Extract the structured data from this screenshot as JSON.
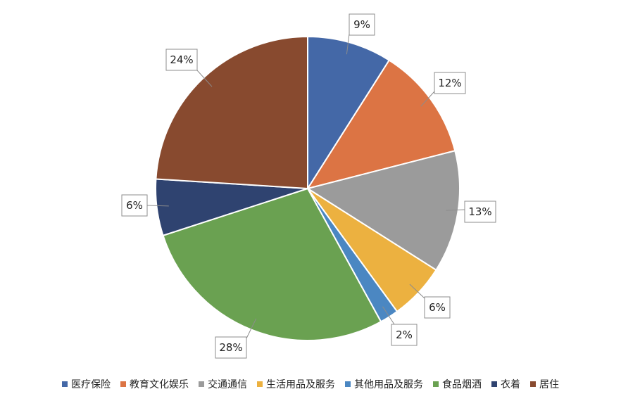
{
  "chart_data": {
    "type": "pie",
    "title": "",
    "categories": [
      "医疗保险",
      "教育文化娱乐",
      "交通通信",
      "生活用品及服务",
      "其他用品及服务",
      "食品烟酒",
      "衣着",
      "居住"
    ],
    "values": [
      9,
      12,
      13,
      6,
      2,
      28,
      6,
      24
    ],
    "labels": [
      "9%",
      "12%",
      "13%",
      "6%",
      "2%",
      "28%",
      "6%",
      "24%"
    ],
    "colors": [
      "#4468a7",
      "#dc7444",
      "#9b9b9b",
      "#ecb140",
      "#4b87c2",
      "#6aa151",
      "#2f4370",
      "#884a2f"
    ],
    "start_angle_deg": 0,
    "direction": "clockwise",
    "legend_position": "bottom"
  }
}
